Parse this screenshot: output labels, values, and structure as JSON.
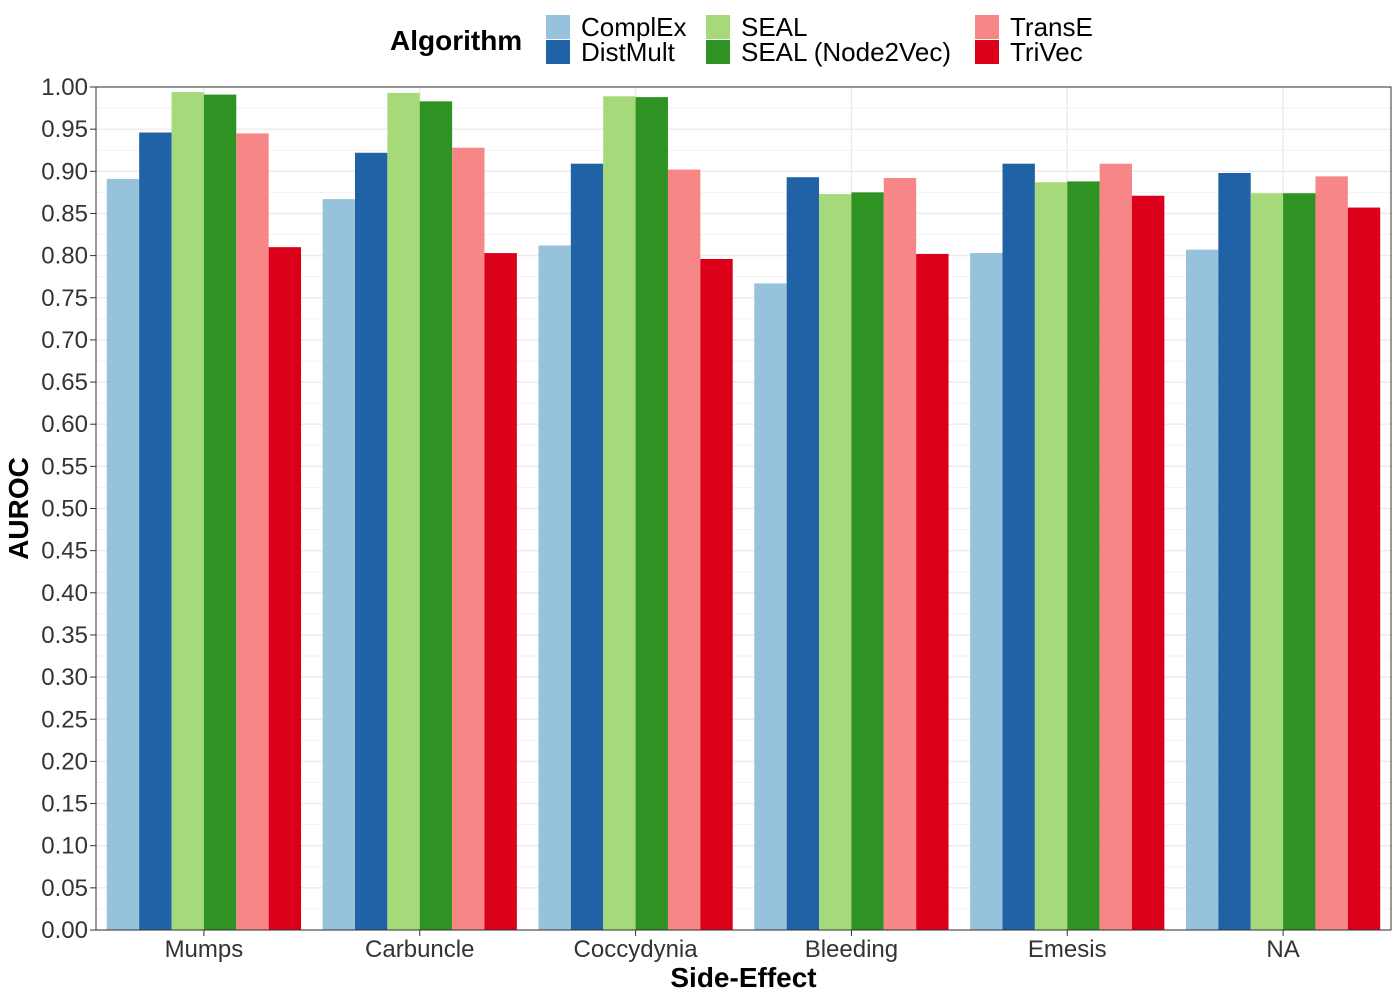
{
  "chart_data": {
    "type": "bar",
    "xlabel": "Side-Effect",
    "ylabel": "AUROC",
    "ylim": [
      0,
      1
    ],
    "ytick_step": 0.05,
    "grid": true,
    "legend": {
      "title": "Algorithm",
      "placement": "top"
    },
    "categories": [
      "Mumps",
      "Carbuncle",
      "Coccydynia",
      "Bleeding",
      "Emesis",
      "NA"
    ],
    "series": [
      {
        "name": "ComplEx",
        "color": "#96C2DB",
        "values": [
          0.891,
          0.867,
          0.812,
          0.767,
          0.803,
          0.807
        ]
      },
      {
        "name": "DistMult",
        "color": "#1F62A5",
        "values": [
          0.946,
          0.922,
          0.909,
          0.893,
          0.909,
          0.898
        ]
      },
      {
        "name": "SEAL",
        "color": "#A6D97A",
        "values": [
          0.994,
          0.993,
          0.989,
          0.873,
          0.887,
          0.874
        ]
      },
      {
        "name": "SEAL (Node2Vec)",
        "color": "#2E9322",
        "values": [
          0.991,
          0.983,
          0.988,
          0.875,
          0.888,
          0.874
        ]
      },
      {
        "name": "TransE",
        "color": "#F78686",
        "values": [
          0.945,
          0.928,
          0.902,
          0.892,
          0.909,
          0.894
        ]
      },
      {
        "name": "TriVec",
        "color": "#DB001A",
        "values": [
          0.81,
          0.803,
          0.796,
          0.802,
          0.871,
          0.857
        ]
      }
    ]
  }
}
